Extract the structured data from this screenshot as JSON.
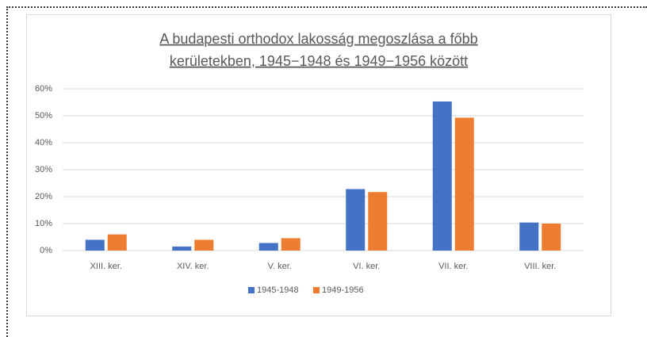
{
  "chart_data": {
    "type": "bar",
    "title": [
      "A budapesti orthodox lakosság megoszlása a főbb",
      "kerületekben, 1945−1948 és 1949−1956 között"
    ],
    "categories": [
      "XIII. ker.",
      "XIV. ker.",
      "V. ker.",
      "VI. ker.",
      "VII. ker.",
      "VIII. ker."
    ],
    "series": [
      {
        "name": "1945-1948",
        "color": "#4472c4",
        "values": [
          4,
          1.5,
          2.8,
          22.8,
          55.3,
          10.4
        ]
      },
      {
        "name": "1949-1956",
        "color": "#ed7d31",
        "values": [
          6,
          4,
          4.6,
          21.7,
          49.3,
          10
        ]
      }
    ],
    "ylim": [
      0,
      60
    ],
    "yticks": [
      {
        "value": 0,
        "label": "0%"
      },
      {
        "value": 10,
        "label": "10%"
      },
      {
        "value": 20,
        "label": "20%"
      },
      {
        "value": 30,
        "label": "30%"
      },
      {
        "value": 40,
        "label": "40%"
      },
      {
        "value": 50,
        "label": "50%"
      },
      {
        "value": 60,
        "label": "60%"
      }
    ],
    "grid": true,
    "legend": "bottom"
  }
}
